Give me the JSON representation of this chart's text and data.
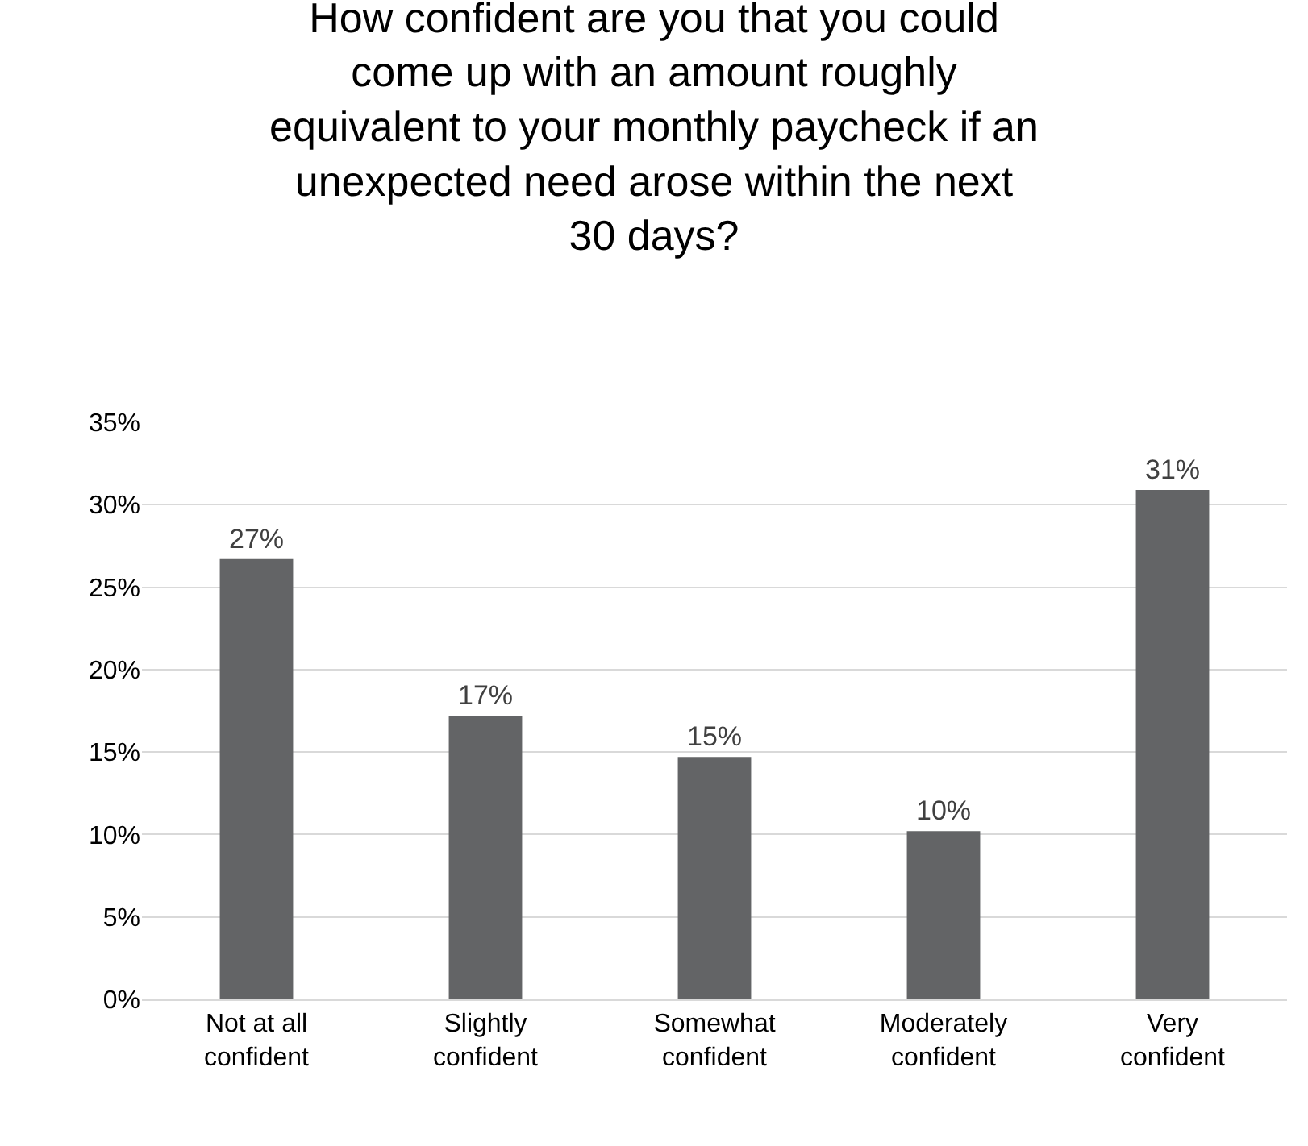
{
  "chart_data": {
    "type": "bar",
    "title": "How confident are you that you could\ncome up with an amount roughly\nequivalent to your monthly paycheck if an\nunexpected need arose within the next\n30 days?",
    "categories": [
      "Not at all confident",
      "Slightly confident",
      "Somewhat confident",
      "Moderately confident",
      "Very confident"
    ],
    "values": [
      26.7,
      17.2,
      14.7,
      10.2,
      30.9
    ],
    "value_labels": [
      "27%",
      "17%",
      "15%",
      "10%",
      "31%"
    ],
    "color": "#636466",
    "ylim": [
      0,
      35
    ],
    "yticks": [
      {
        "value": 0,
        "label": "0%"
      },
      {
        "value": 5,
        "label": "5%"
      },
      {
        "value": 10,
        "label": "10%"
      },
      {
        "value": 15,
        "label": "15%"
      },
      {
        "value": 20,
        "label": "20%"
      },
      {
        "value": 25,
        "label": "25%"
      },
      {
        "value": 30,
        "label": "30%"
      },
      {
        "value": 35,
        "label": "35%"
      }
    ],
    "grid": "y",
    "legend": false
  }
}
